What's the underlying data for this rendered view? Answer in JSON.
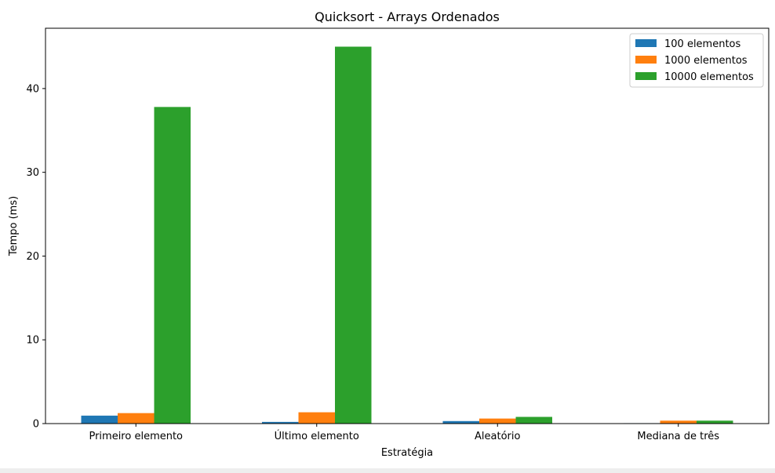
{
  "chart_data": {
    "type": "bar",
    "title": "Quicksort - Arrays Ordenados",
    "xlabel": "Estratégia",
    "ylabel": "Tempo (ms)",
    "categories": [
      "Primeiro elemento",
      "Último elemento",
      "Aleatório",
      "Mediana de três"
    ],
    "series": [
      {
        "name": "100 elementos",
        "color": "#1f77b4",
        "values": [
          0.95,
          0.2,
          0.3,
          0.05
        ]
      },
      {
        "name": "1000 elementos",
        "color": "#ff7f0e",
        "values": [
          1.25,
          1.35,
          0.6,
          0.35
        ]
      },
      {
        "name": "10000 elementos",
        "color": "#2ca02c",
        "values": [
          37.8,
          45.0,
          0.8,
          0.35
        ]
      }
    ],
    "ylim": [
      0,
      47.2
    ],
    "yticks": [
      0,
      10,
      20,
      30,
      40
    ],
    "grid": false,
    "legend_position": "top-right"
  }
}
